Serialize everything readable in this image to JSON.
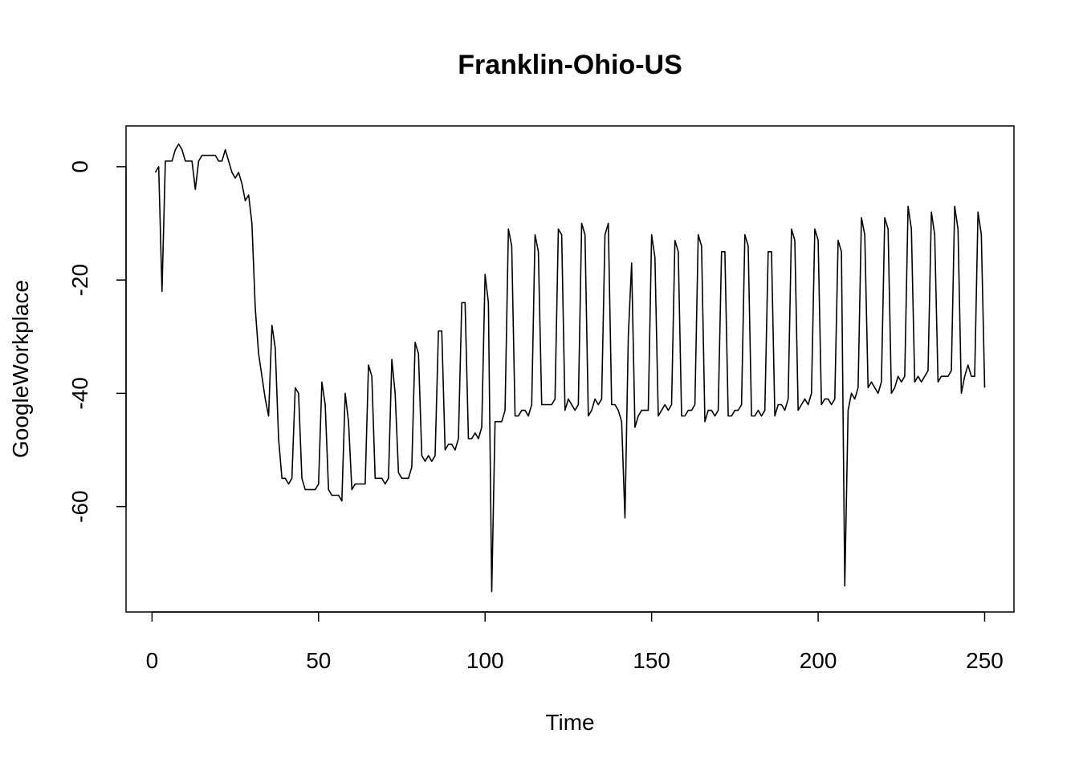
{
  "chart_data": {
    "type": "line",
    "title": "Franklin-Ohio-US",
    "xlabel": "Time",
    "ylabel": "GoogleWorkplace",
    "xlim": [
      -7.8,
      258.8
    ],
    "ylim": [
      -78.6,
      7.2
    ],
    "grid": false,
    "legend": "none",
    "line_color": "#000000",
    "xticks": [
      0,
      50,
      100,
      150,
      200,
      250
    ],
    "xtick_labels": [
      "0",
      "50",
      "100",
      "150",
      "200",
      "250"
    ],
    "yticks": [
      0,
      -20,
      -40,
      -60
    ],
    "ytick_labels": [
      "0",
      "-20",
      "-40",
      "-60"
    ],
    "series": [
      {
        "x_start": 1,
        "values": [
          -1,
          0,
          -22,
          1,
          1,
          1,
          3,
          4,
          3,
          1,
          1,
          1,
          -4,
          1,
          2,
          2,
          2,
          2,
          2,
          1,
          1,
          3,
          1,
          -1,
          -2,
          -1,
          -3,
          -6,
          -5,
          -10,
          -25,
          -33,
          -37,
          -41,
          -44,
          -28,
          -32,
          -48,
          -55,
          -55,
          -56,
          -55,
          -39,
          -40,
          -55,
          -57,
          -57,
          -57,
          -57,
          -56,
          -38,
          -42,
          -57,
          -58,
          -58,
          -58,
          -59,
          -40,
          -45,
          -57,
          -56,
          -56,
          -56,
          -56,
          -35,
          -37,
          -55,
          -55,
          -55,
          -56,
          -55,
          -34,
          -40,
          -54,
          -55,
          -55,
          -55,
          -53,
          -31,
          -33,
          -51,
          -52,
          -51,
          -52,
          -51,
          -29,
          -29,
          -50,
          -49,
          -49,
          -50,
          -48,
          -24,
          -24,
          -48,
          -48,
          -47,
          -48,
          -46,
          -19,
          -24,
          -75,
          -45,
          -45,
          -45,
          -43,
          -11,
          -14,
          -44,
          -44,
          -43,
          -43,
          -44,
          -42,
          -12,
          -15,
          -42,
          -42,
          -42,
          -42,
          -41,
          -11,
          -12,
          -43,
          -41,
          -42,
          -43,
          -42,
          -10,
          -12,
          -44,
          -43,
          -41,
          -42,
          -41,
          -12,
          -10,
          -42,
          -42,
          -43,
          -45,
          -62,
          -30,
          -17,
          -46,
          -44,
          -43,
          -43,
          -43,
          -12,
          -16,
          -44,
          -43,
          -42,
          -43,
          -42,
          -13,
          -15,
          -44,
          -44,
          -43,
          -43,
          -42,
          -12,
          -14,
          -45,
          -43,
          -43,
          -44,
          -43,
          -15,
          -15,
          -44,
          -44,
          -43,
          -43,
          -42,
          -12,
          -14,
          -44,
          -44,
          -43,
          -44,
          -43,
          -15,
          -15,
          -44,
          -42,
          -42,
          -43,
          -41,
          -11,
          -13,
          -43,
          -42,
          -41,
          -42,
          -40,
          -11,
          -13,
          -42,
          -41,
          -41,
          -42,
          -41,
          -13,
          -15,
          -74,
          -43,
          -40,
          -41,
          -39,
          -9,
          -12,
          -39,
          -38,
          -39,
          -40,
          -38,
          -9,
          -11,
          -40,
          -39,
          -37,
          -38,
          -37,
          -7,
          -11,
          -38,
          -37,
          -38,
          -37,
          -36,
          -8,
          -12,
          -38,
          -37,
          -37,
          -37,
          -36,
          -7,
          -11,
          -40,
          -37,
          -35,
          -37,
          -37,
          -8,
          -12,
          -39
        ]
      }
    ]
  }
}
